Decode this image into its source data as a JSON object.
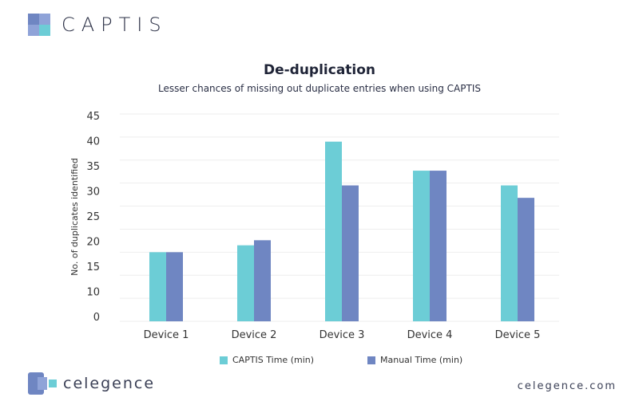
{
  "header": {
    "brand": "CAPTIS"
  },
  "footer": {
    "brand": "celegence",
    "url": "celegence.com"
  },
  "colors": {
    "captis": "#6ccdd6",
    "manual": "#6f86c2",
    "grid": "#eeeeee"
  },
  "chart_data": {
    "type": "bar",
    "title": "De-duplication",
    "subtitle": "Lesser chances of missing out duplicate entries when using CAPTIS",
    "xlabel": "",
    "ylabel": "No. of duplicates identified",
    "ylim": [
      0,
      45
    ],
    "yticks": [
      "45",
      "40",
      "35",
      "30",
      "25",
      "20",
      "15",
      "10",
      "0"
    ],
    "grid": true,
    "legend": "bottom",
    "categories": [
      "Device 1",
      "Device 2",
      "Device 3",
      "Device 4",
      "Device 5"
    ],
    "series": [
      {
        "name": "CAPTIS Time (min)",
        "values": [
          15,
          16.5,
          39,
          32.7,
          29.5
        ]
      },
      {
        "name": "Manual Time (min)",
        "values": [
          15,
          17.6,
          29.5,
          32.7,
          26.8
        ]
      }
    ]
  }
}
